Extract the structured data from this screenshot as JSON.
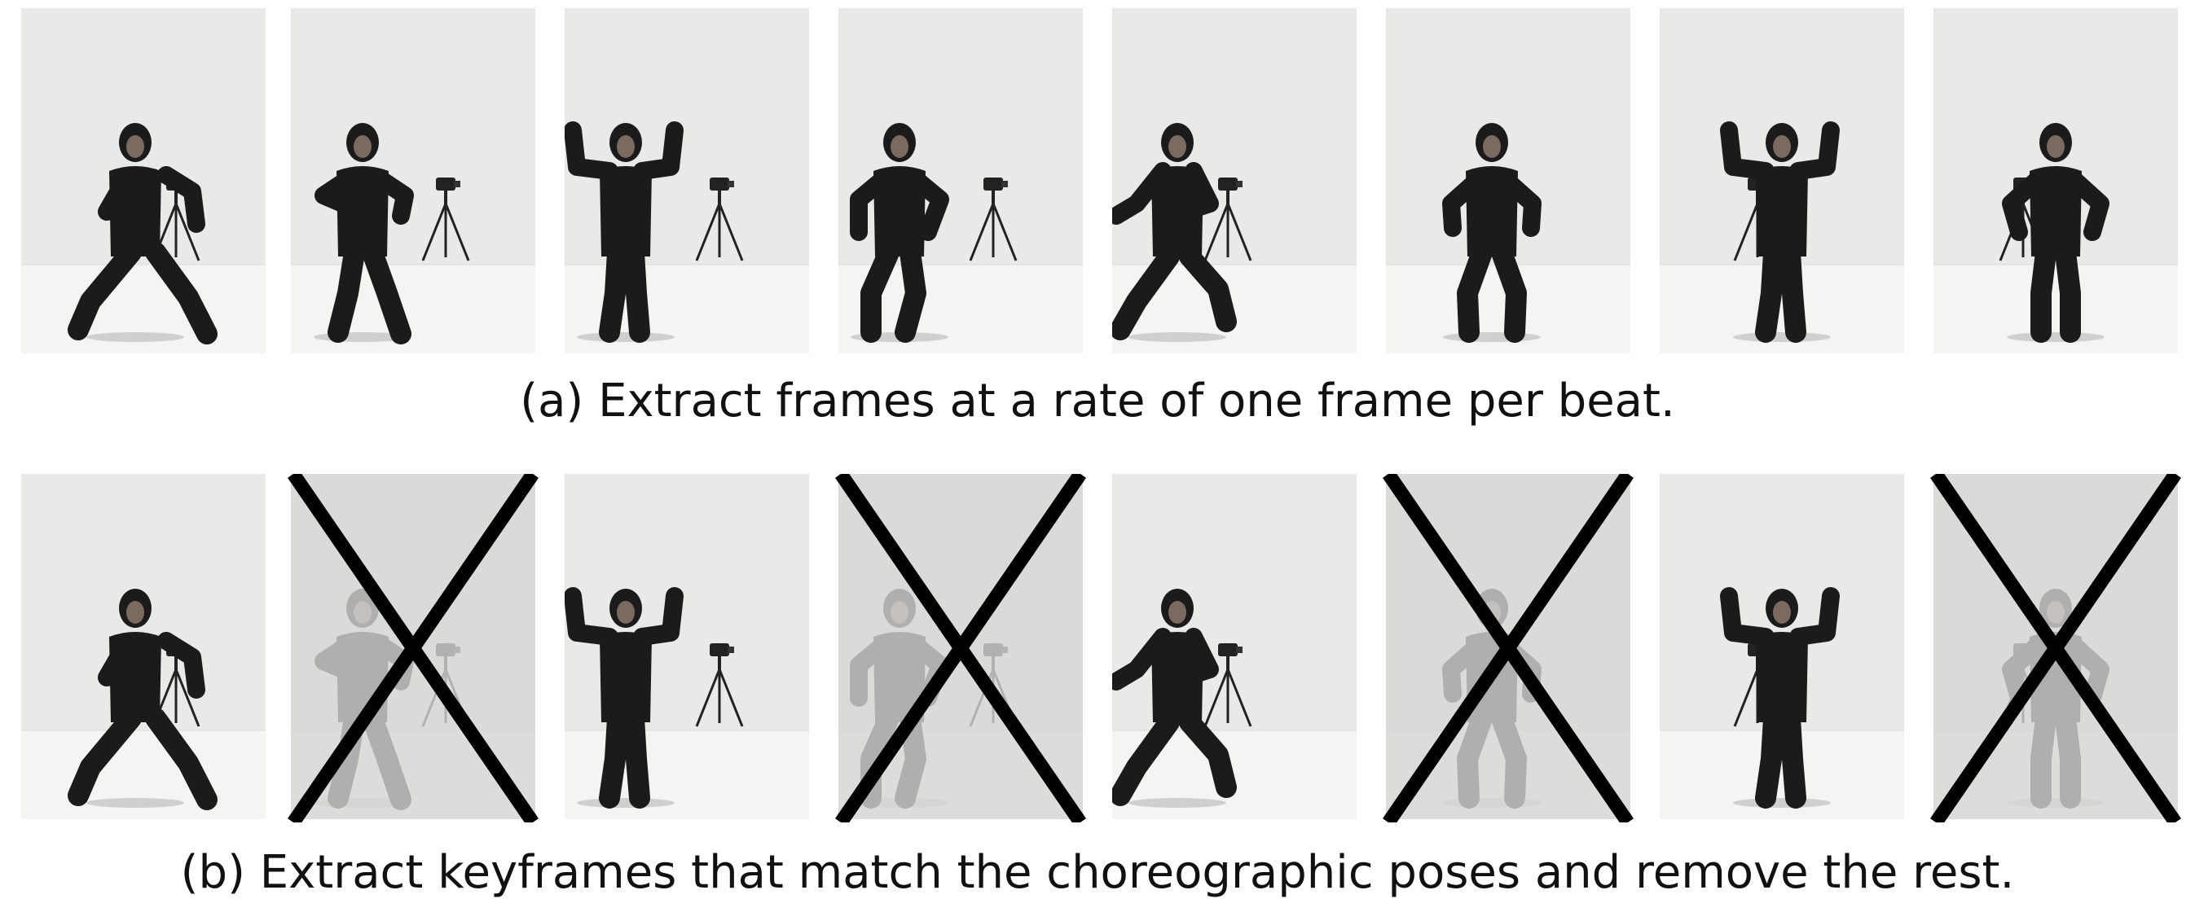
{
  "captions": {
    "a": "(a) Extract frames at a rate of one frame per beat.",
    "b": "(b) Extract keyframes that match the choreographic poses and remove the rest."
  },
  "frames": [
    {
      "pose": "lunge-left",
      "camera": true,
      "kept": true
    },
    {
      "pose": "arms-bent-step",
      "camera": true,
      "kept": false
    },
    {
      "pose": "arms-raised",
      "camera": true,
      "kept": true
    },
    {
      "pose": "knees-bent-arms-down",
      "camera": true,
      "kept": false
    },
    {
      "pose": "lunge-reach",
      "camera": true,
      "kept": true
    },
    {
      "pose": "wide-stance-arms-out",
      "camera": false,
      "kept": false
    },
    {
      "pose": "arms-raised",
      "camera": true,
      "kept": true
    },
    {
      "pose": "arms-out-bent",
      "camera": true,
      "kept": false
    }
  ],
  "colors": {
    "background": "#e9e9e7",
    "floor": "#f4f4f2",
    "figure": "#1b1b1b",
    "cross": "#000000"
  }
}
